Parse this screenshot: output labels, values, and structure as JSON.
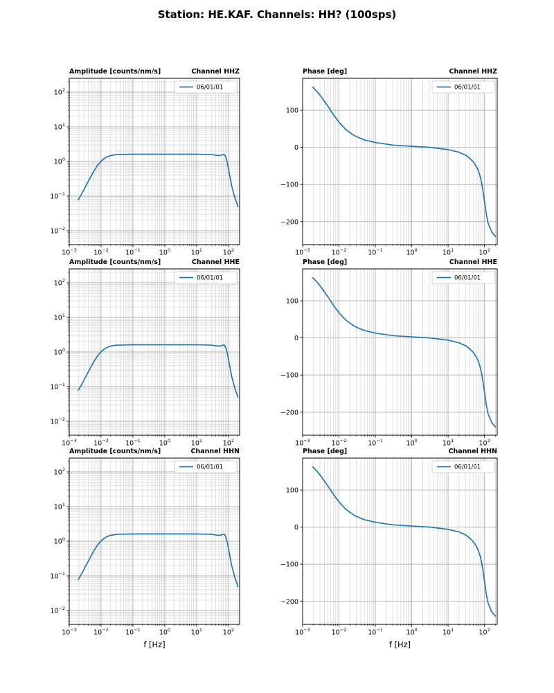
{
  "title": "Station: HE.KAF. Channels: HH? (100sps)",
  "legend_label": "06/01/01",
  "xlabel": "f [Hz]",
  "colors": {
    "line": "#1f77b4",
    "grid_major": "#b0b0b0",
    "grid_minor": "#d2d2d2",
    "axis": "#000000"
  },
  "chart_data": {
    "type": "line",
    "xscale": "log",
    "xlim_log": [
      -3,
      2.35
    ],
    "xticks_exp": [
      -3,
      -2,
      -1,
      0,
      1,
      2
    ],
    "amp_ylim_log": [
      -2.4,
      2.4
    ],
    "amp_yticks_exp": [
      -2,
      -1,
      0,
      1,
      2
    ],
    "phase_ylim": [
      -262,
      186
    ],
    "phase_yticks": [
      -200,
      -100,
      0,
      100
    ],
    "x_log10_f": [
      -2.72,
      -2.6,
      -2.5,
      -2.4,
      -2.3,
      -2.2,
      -2.1,
      -2.0,
      -1.9,
      -1.8,
      -1.7,
      -1.6,
      -1.5,
      -1.3,
      -1.0,
      -0.5,
      0.0,
      0.5,
      1.0,
      1.3,
      1.5,
      1.6,
      1.7,
      1.78,
      1.84,
      1.88,
      1.92,
      1.96,
      2.0,
      2.05,
      2.1,
      2.2,
      2.3
    ],
    "amplitude_counts_per_nm_s": [
      0.078,
      0.12,
      0.18,
      0.27,
      0.4,
      0.58,
      0.8,
      1.02,
      1.22,
      1.38,
      1.48,
      1.54,
      1.58,
      1.6,
      1.62,
      1.62,
      1.62,
      1.62,
      1.62,
      1.6,
      1.57,
      1.52,
      1.48,
      1.52,
      1.6,
      1.55,
      1.3,
      0.95,
      0.62,
      0.35,
      0.2,
      0.09,
      0.05
    ],
    "phase_deg": [
      162,
      150,
      138,
      124,
      110,
      95,
      81,
      68,
      57,
      47,
      40,
      33,
      28,
      20,
      13,
      6,
      3,
      0,
      -6,
      -13,
      -22,
      -30,
      -40,
      -52,
      -65,
      -78,
      -95,
      -118,
      -145,
      -180,
      -205,
      -228,
      -240
    ],
    "charts": [
      {
        "id": "amplitude-hhz",
        "row": 0,
        "col": 0,
        "title_left": "Amplitude [counts/nm/s]",
        "title_right": "Channel HHZ",
        "yscale": "log",
        "values_key": "amplitude_counts_per_nm_s",
        "legend": "06/01/01"
      },
      {
        "id": "phase-hhz",
        "row": 0,
        "col": 1,
        "title_left": "Phase [deg]",
        "title_right": "Channel HHZ",
        "yscale": "linear",
        "values_key": "phase_deg",
        "legend": "06/01/01"
      },
      {
        "id": "amplitude-hhe",
        "row": 1,
        "col": 0,
        "title_left": "Amplitude [counts/nm/s]",
        "title_right": "Channel HHE",
        "yscale": "log",
        "values_key": "amplitude_counts_per_nm_s",
        "legend": "06/01/01"
      },
      {
        "id": "phase-hhe",
        "row": 1,
        "col": 1,
        "title_left": "Phase [deg]",
        "title_right": "Channel HHE",
        "yscale": "linear",
        "values_key": "phase_deg",
        "legend": "06/01/01"
      },
      {
        "id": "amplitude-hhn",
        "row": 2,
        "col": 0,
        "title_left": "Amplitude [counts/nm/s]",
        "title_right": "Channel HHN",
        "yscale": "log",
        "values_key": "amplitude_counts_per_nm_s",
        "legend": "06/01/01"
      },
      {
        "id": "phase-hhn",
        "row": 2,
        "col": 1,
        "title_left": "Phase [deg]",
        "title_right": "Channel HHN",
        "yscale": "linear",
        "values_key": "phase_deg",
        "legend": "06/01/01"
      }
    ]
  }
}
